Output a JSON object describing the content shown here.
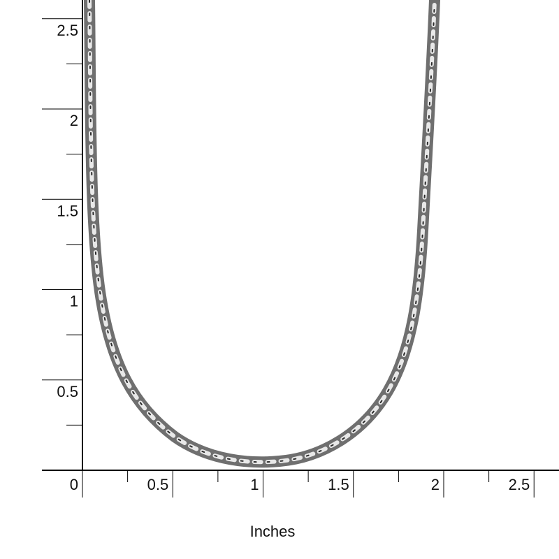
{
  "axis_label": "Inches",
  "y_ticks": [
    0.5,
    1,
    1.5,
    2,
    2.5
  ],
  "x_ticks": [
    0,
    0.5,
    1,
    1.5,
    2,
    2.5
  ]
}
